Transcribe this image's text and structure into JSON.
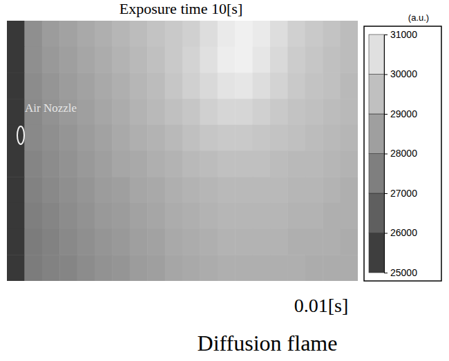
{
  "chart_data": {
    "type": "heatmap",
    "title": "Diffusion flame",
    "subtitle": "Exposure time 10[s]",
    "annotations": [
      "Air Nozzle",
      "0.01[s]"
    ],
    "tick_labels": false,
    "cells": [
      [
        25300,
        28000,
        28400,
        28600,
        28800,
        29000,
        29200,
        29400,
        29600,
        29800,
        30000,
        30400,
        30800,
        31000,
        30800,
        30400,
        30000,
        29800,
        29600,
        29400
      ],
      [
        25300,
        28000,
        28300,
        28500,
        28700,
        28900,
        29100,
        29300,
        29500,
        29800,
        30100,
        30500,
        30900,
        31000,
        30700,
        30300,
        29900,
        29700,
        29500,
        29400
      ],
      [
        25300,
        27900,
        28200,
        28400,
        28600,
        28800,
        29000,
        29200,
        29400,
        29700,
        30000,
        30300,
        30600,
        30700,
        30400,
        30100,
        29800,
        29600,
        29500,
        29300
      ],
      [
        25300,
        27800,
        28100,
        28300,
        28500,
        28700,
        28900,
        29100,
        29300,
        29500,
        29700,
        30000,
        30200,
        30200,
        30000,
        29800,
        29600,
        29500,
        29400,
        29300
      ],
      [
        25300,
        27800,
        28000,
        28200,
        28400,
        28600,
        28800,
        29000,
        29100,
        29300,
        29500,
        29700,
        29800,
        29800,
        29700,
        29600,
        29500,
        29400,
        29300,
        29200
      ],
      [
        25300,
        27700,
        27900,
        28100,
        28300,
        28500,
        28700,
        28800,
        29000,
        29100,
        29300,
        29400,
        29500,
        29500,
        29500,
        29400,
        29300,
        29300,
        29200,
        29100
      ],
      [
        25300,
        27600,
        27800,
        28000,
        28200,
        28400,
        28500,
        28700,
        28800,
        29000,
        29100,
        29200,
        29300,
        29300,
        29300,
        29300,
        29200,
        29200,
        29100,
        29000
      ],
      [
        25300,
        27500,
        27700,
        27900,
        28100,
        28300,
        28400,
        28600,
        28700,
        28900,
        29000,
        29100,
        29200,
        29200,
        29200,
        29200,
        29100,
        29100,
        29000,
        29000
      ],
      [
        25300,
        27400,
        27600,
        27800,
        28000,
        28200,
        28300,
        28500,
        28600,
        28800,
        28900,
        29000,
        29100,
        29100,
        29100,
        29100,
        29000,
        29000,
        29000,
        28900
      ],
      [
        25300,
        27400,
        27600,
        27700,
        27900,
        28100,
        28200,
        28400,
        28500,
        28700,
        28800,
        28900,
        29000,
        29000,
        29000,
        29000,
        29000,
        28900,
        28900,
        28900
      ]
    ],
    "colorbar": {
      "label": "(a.u.)",
      "range": [
        25000,
        31000
      ],
      "ticks": [
        25000,
        26000,
        27000,
        28000,
        29000,
        30000,
        31000
      ]
    }
  }
}
